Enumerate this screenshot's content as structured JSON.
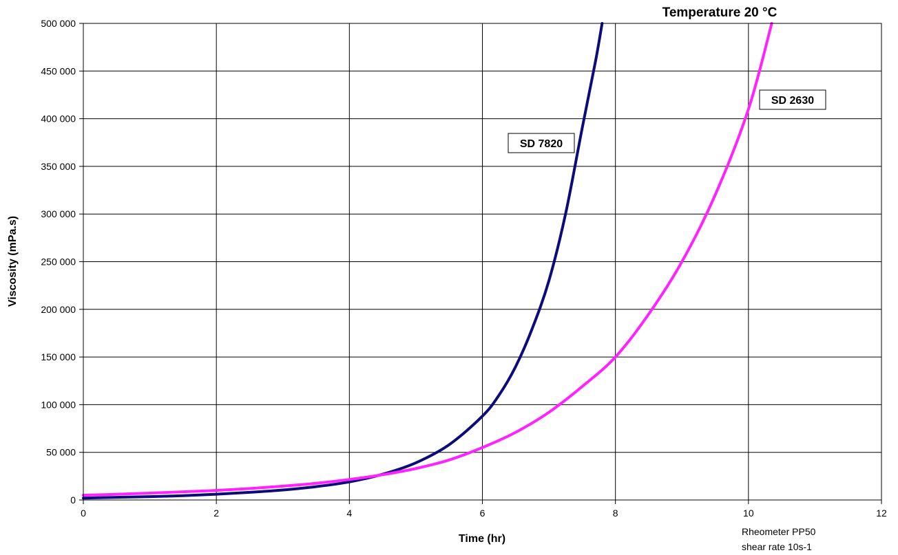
{
  "chart_data": {
    "type": "line",
    "title": "Temperature 20 °C",
    "xlabel": "Time (hr)",
    "ylabel": "Viscosity (mPa.s)",
    "xlim": [
      0,
      12
    ],
    "ylim": [
      0,
      500000
    ],
    "x_ticks": [
      0,
      2,
      4,
      6,
      8,
      10,
      12
    ],
    "x_tick_labels": [
      "0",
      "2",
      "4",
      "6",
      "8",
      "10",
      "12"
    ],
    "y_ticks": [
      0,
      50000,
      100000,
      150000,
      200000,
      250000,
      300000,
      350000,
      400000,
      450000,
      500000
    ],
    "y_tick_labels": [
      "0",
      "50 000",
      "100 000",
      "150 000",
      "200 000",
      "250 000",
      "300 000",
      "350 000",
      "400 000",
      "450 000",
      "500 000"
    ],
    "grid": true,
    "notes": [
      "Rheometer PP50",
      "shear rate 10s-1"
    ],
    "series": [
      {
        "name": "SD 7820",
        "color": "#0b0b7a",
        "x": [
          0,
          0.5,
          1,
          1.5,
          2,
          2.5,
          3,
          3.5,
          4,
          4.5,
          5,
          5.5,
          6,
          6.25,
          6.5,
          6.75,
          7,
          7.25,
          7.5,
          7.7,
          7.8
        ],
        "y": [
          2000,
          2800,
          3500,
          4500,
          6000,
          8000,
          10500,
          14000,
          19000,
          27000,
          39000,
          58000,
          88000,
          110000,
          140000,
          180000,
          230000,
          300000,
          390000,
          460000,
          500000
        ]
      },
      {
        "name": "SD 2630",
        "color": "#ff22ff",
        "x": [
          0,
          0.5,
          1,
          1.5,
          2,
          2.5,
          3,
          3.5,
          4,
          4.5,
          5,
          5.5,
          6,
          6.5,
          7,
          7.5,
          8,
          8.5,
          9,
          9.5,
          10,
          10.35
        ],
        "y": [
          5000,
          6000,
          7200,
          8600,
          10000,
          12000,
          14500,
          17500,
          21500,
          26500,
          33000,
          42000,
          55000,
          71000,
          92000,
          119000,
          150000,
          195000,
          250000,
          320000,
          410000,
          500000
        ]
      }
    ]
  }
}
